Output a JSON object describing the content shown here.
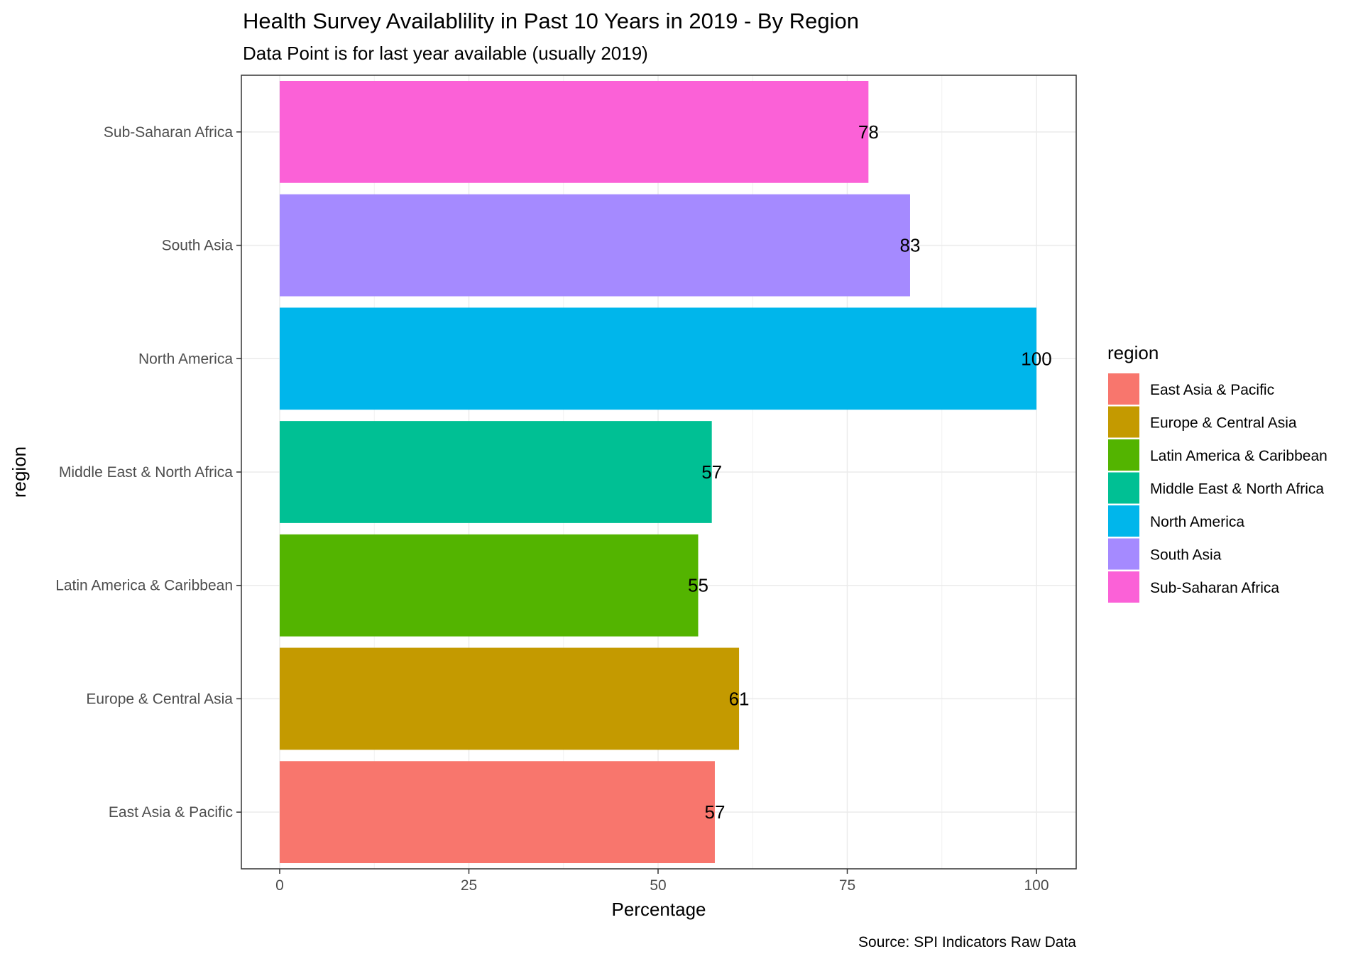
{
  "chart_data": {
    "type": "bar",
    "orientation": "horizontal",
    "title": "Health Survey Availablility in Past 10 Years in 2019 - By Region",
    "subtitle": "Data Point is for last year available (usually 2019)",
    "xlabel": "Percentage",
    "ylabel": "region",
    "caption": "Source: SPI Indicators Raw Data",
    "xlim": [
      0,
      105
    ],
    "x_ticks": [
      0,
      25,
      50,
      75,
      100
    ],
    "x_tick_labels": [
      "0",
      "25",
      "50",
      "75",
      "100"
    ],
    "grid": true,
    "categories": [
      "East Asia & Pacific",
      "Europe & Central Asia",
      "Latin America & Caribbean",
      "Middle East & North Africa",
      "North America",
      "South Asia",
      "Sub-Saharan Africa"
    ],
    "values": [
      57.5,
      60.7,
      55.3,
      57.1,
      100,
      83.3,
      77.8
    ],
    "data_labels": [
      "57",
      "61",
      "55",
      "57",
      "100",
      "83",
      "78"
    ],
    "colors": [
      "#F8766D",
      "#C49A00",
      "#53B400",
      "#00C094",
      "#00B6EB",
      "#A58AFF",
      "#FB61D7"
    ],
    "legend": {
      "title": "region",
      "position": "right",
      "entries": [
        "East Asia & Pacific",
        "Europe & Central Asia",
        "Latin America & Caribbean",
        "Middle East & North Africa",
        "North America",
        "South Asia",
        "Sub-Saharan Africa"
      ]
    }
  }
}
